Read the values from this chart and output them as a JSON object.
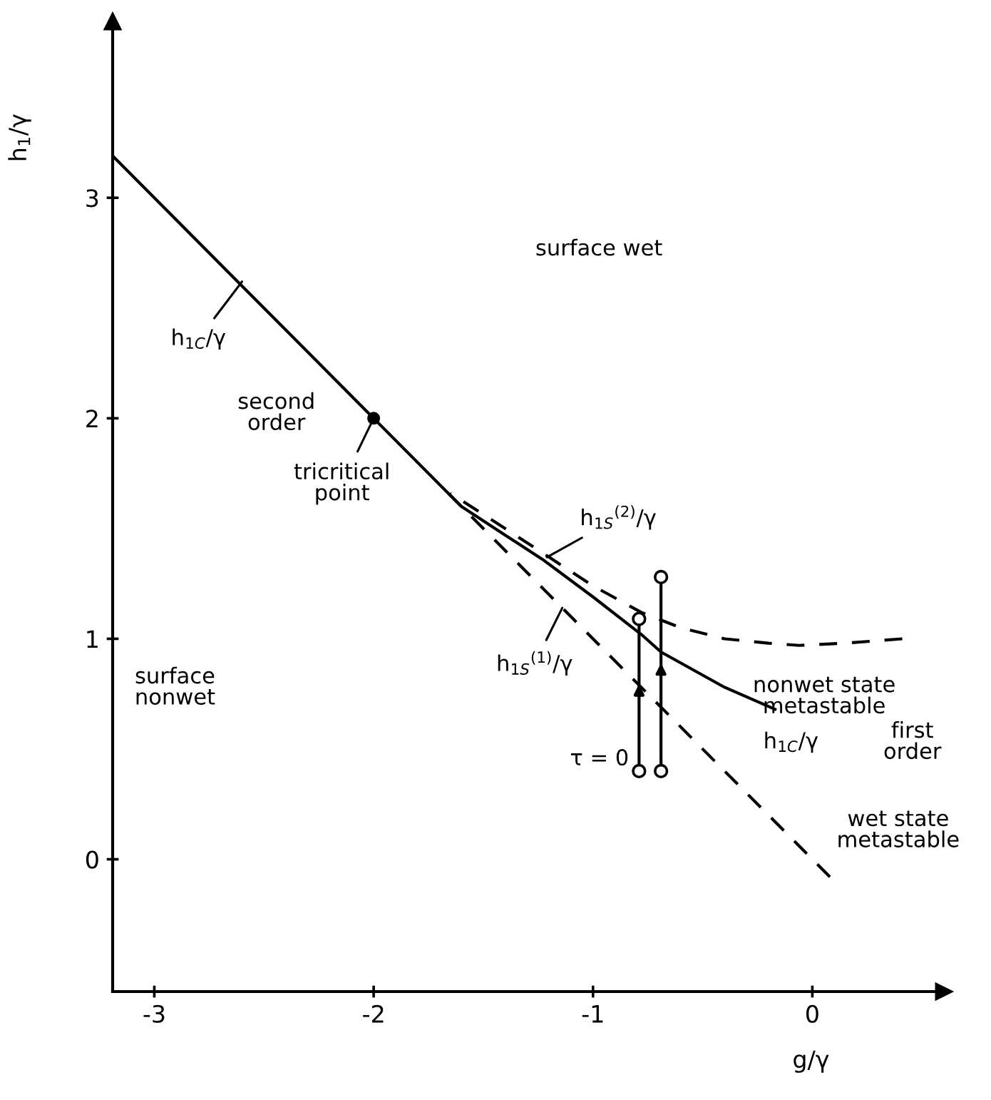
{
  "chart_data": {
    "type": "line",
    "xlabel": "g/γ",
    "ylabel": "h$_{1}$/γ",
    "xlim": [
      -3.19,
      0.6
    ],
    "ylim": [
      -0.6,
      3.8
    ],
    "xticks": [
      -3,
      -2,
      -1,
      0
    ],
    "yticks": [
      0,
      1,
      2,
      3
    ],
    "grid": false,
    "legend": false,
    "series": [
      {
        "color": "#000000",
        "line_style": "solid",
        "marker": "none",
        "x": [
          -3.19,
          -2.6,
          -2.0,
          -1.6,
          -1.4,
          -1.23,
          -1.0,
          -0.78,
          -0.69,
          -0.4,
          -0.17
        ],
        "values": [
          3.19,
          2.6,
          2.0,
          1.6,
          1.47,
          1.36,
          1.19,
          1.02,
          0.94,
          0.78,
          0.68
        ]
      },
      {
        "color": "#000000",
        "line_style": "dashed",
        "marker": "none",
        "x": [
          -1.65,
          -1.4,
          -1.2,
          -1.0,
          -0.78,
          -0.6,
          -0.4,
          -0.2,
          -0.06,
          0.15,
          0.41
        ],
        "values": [
          1.66,
          1.5,
          1.37,
          1.24,
          1.12,
          1.05,
          1.0,
          0.98,
          0.97,
          0.98,
          1.0
        ]
      },
      {
        "color": "#000000",
        "line_style": "dashed",
        "marker": "none",
        "x": [
          -1.7,
          0.08
        ],
        "values": [
          1.7,
          -0.08
        ]
      },
      {
        "type": "scatter",
        "color": "#000000",
        "marker": "circle",
        "x": [
          -2.0
        ],
        "values": [
          2.0
        ]
      },
      {
        "type": "scatter",
        "color": "#000000",
        "line_style": "solid",
        "marker": "circle",
        "x": [
          -0.79,
          -0.79
        ],
        "values": [
          0.4,
          1.09
        ]
      },
      {
        "type": "scatter",
        "color": "#000000",
        "line_style": "solid",
        "marker": "circle",
        "x": [
          -0.69,
          -0.69
        ],
        "values": [
          0.4,
          1.28
        ]
      }
    ],
    "annotations": [
      "surface wet",
      {
        "text": "h$_{1C}$/γ",
        "x": -2.6,
        "y": 2.62
      },
      "second\norder",
      {
        "text": "tricritical\npoint",
        "x": -2.0,
        "y": 2.0
      },
      "surface\nnonwet",
      {
        "text": "h$_{1S}$$^{(2)}$/γ",
        "x": -1.21,
        "y": 1.37
      },
      {
        "text": "h$_{1S}$$^{(1)}$/γ",
        "x": -1.14,
        "y": 1.14
      },
      "nonwet state\nmetastable",
      "h$_{1C}$/γ",
      "first\norder",
      {
        "text": "τ = 0",
        "x": -0.79,
        "y": 0.4
      },
      "wet state\nmetastable"
    ]
  }
}
